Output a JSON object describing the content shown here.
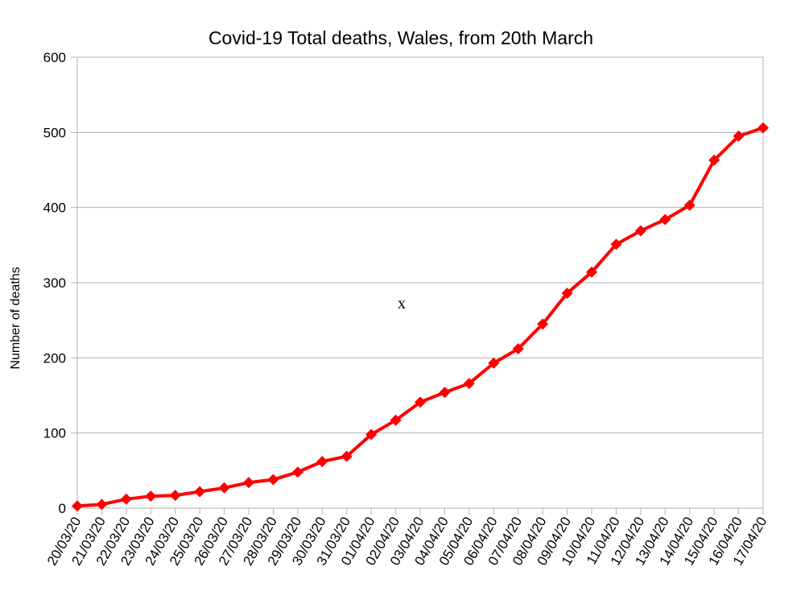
{
  "chart_data": {
    "type": "line",
    "title": "Covid-19 Total deaths, Wales, from 20th March",
    "xlabel": "",
    "ylabel": "Number of deaths",
    "ylim": [
      0,
      600
    ],
    "yticks": [
      0,
      100,
      200,
      300,
      400,
      500,
      600
    ],
    "grid": true,
    "legend": "none",
    "annotation": "x",
    "categories": [
      "20/03/20",
      "21/03/20",
      "22/03/20",
      "23/03/20",
      "24/03/20",
      "25/03/20",
      "26/03/20",
      "27/03/20",
      "28/03/20",
      "29/03/20",
      "30/03/20",
      "31/03/20",
      "01/04/20",
      "02/04/20",
      "03/04/20",
      "04/04/20",
      "05/04/20",
      "06/04/20",
      "07/04/20",
      "08/04/20",
      "09/04/20",
      "10/04/20",
      "11/04/20",
      "12/04/20",
      "13/04/20",
      "14/04/20",
      "15/04/20",
      "16/04/20",
      "17/04/20"
    ],
    "series": [
      {
        "color": "#ff0000",
        "values": [
          3,
          5,
          12,
          16,
          17,
          22,
          27,
          34,
          38,
          48,
          62,
          69,
          98,
          117,
          141,
          154,
          166,
          193,
          212,
          245,
          286,
          314,
          351,
          369,
          384,
          403,
          463,
          495,
          506
        ]
      }
    ]
  }
}
